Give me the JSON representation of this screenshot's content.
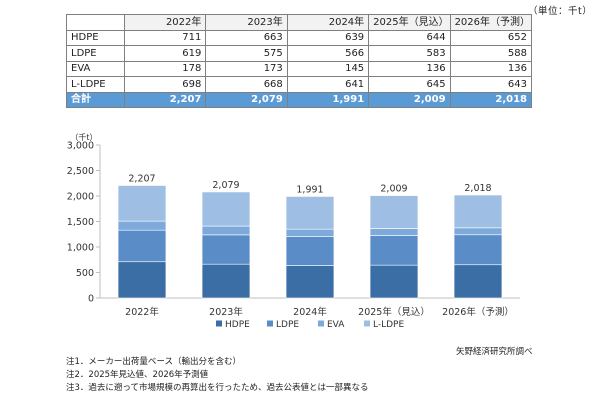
{
  "unit_label": "（単位：千t）",
  "table": {
    "headers": [
      "",
      "2022年",
      "2023年",
      "2024年",
      "2025年（見込）",
      "2026年（予測）"
    ],
    "rows": [
      {
        "label": "HDPE",
        "values": [
          "711",
          "663",
          "639",
          "644",
          "652"
        ]
      },
      {
        "label": "LDPE",
        "values": [
          "619",
          "575",
          "566",
          "583",
          "588"
        ]
      },
      {
        "label": "EVA",
        "values": [
          "178",
          "173",
          "145",
          "136",
          "136"
        ]
      },
      {
        "label": "L-LDPE",
        "values": [
          "698",
          "668",
          "641",
          "645",
          "643"
        ]
      }
    ],
    "total": {
      "label": "合計",
      "values": [
        "2,207",
        "2,079",
        "1,991",
        "2,009",
        "2,018"
      ]
    }
  },
  "chart_data": {
    "type": "bar",
    "stacked": true,
    "categories": [
      "2022年",
      "2023年",
      "2024年",
      "2025年（見込）",
      "2026年（予測）"
    ],
    "series": [
      {
        "name": "HDPE",
        "values": [
          711,
          663,
          639,
          644,
          652
        ],
        "color": "#3c6ea6"
      },
      {
        "name": "LDPE",
        "values": [
          619,
          575,
          566,
          583,
          588
        ],
        "color": "#5a8dc8"
      },
      {
        "name": "EVA",
        "values": [
          178,
          173,
          145,
          136,
          136
        ],
        "color": "#7eaadb"
      },
      {
        "name": "L-LDPE",
        "values": [
          698,
          668,
          641,
          645,
          643
        ],
        "color": "#9ebfe3"
      }
    ],
    "totals": [
      2207,
      2079,
      1991,
      2009,
      2018
    ],
    "total_labels": [
      "2,207",
      "2,079",
      "1,991",
      "2,009",
      "2,018"
    ],
    "ylabel": "（千t）",
    "ylim": [
      0,
      3000
    ],
    "yticks": [
      0,
      500,
      1000,
      1500,
      2000,
      2500,
      3000
    ],
    "ytick_labels": [
      "0",
      "500",
      "1,000",
      "1,500",
      "2,000",
      "2,500",
      "3,000"
    ],
    "grid": false,
    "legend_position": "bottom"
  },
  "source": "矢野経済研究所調べ",
  "notes": [
    "注1．メーカー出荷量ベース（輸出分を含む）",
    "注2．2025年見込値、2026年予測値",
    "注3．過去に遡って市場規模の再算出を行ったため、過去公表値とは一部異なる"
  ]
}
